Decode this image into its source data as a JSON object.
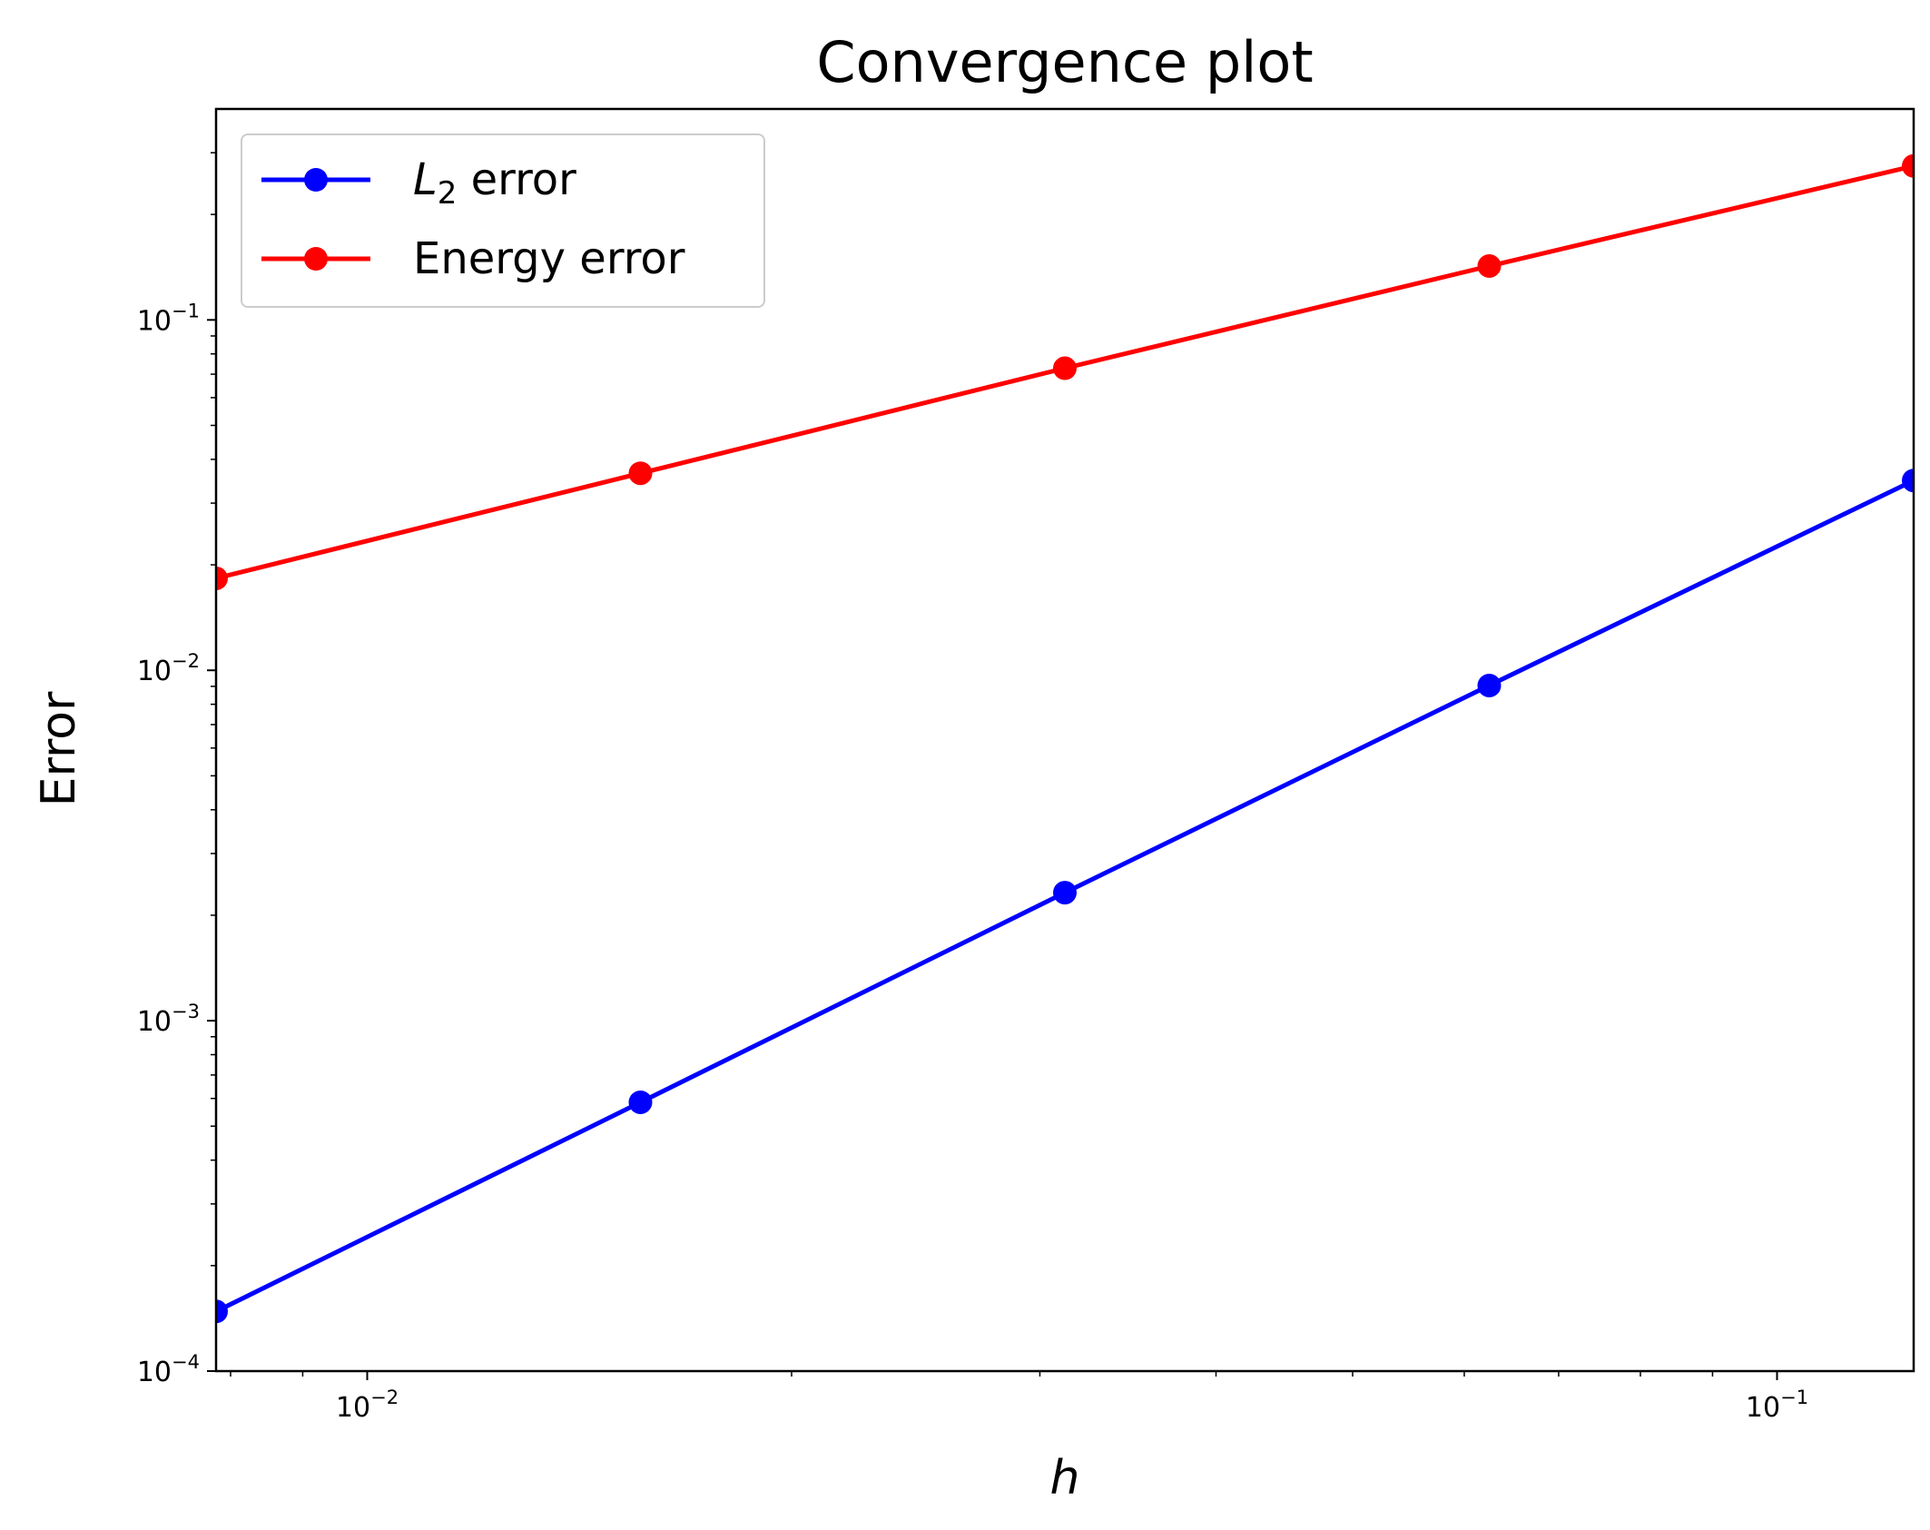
{
  "chart_data": {
    "type": "line",
    "title": "Convergence plot",
    "xlabel": "h",
    "ylabel": "Error",
    "xscale": "log",
    "yscale": "log",
    "xlim": [
      0.0078125,
      0.125
    ],
    "ylim": [
      0.0001,
      0.4
    ],
    "x_ticks": [
      {
        "value": 0.01,
        "base": "10",
        "exp": "−2"
      },
      {
        "value": 0.1,
        "base": "10",
        "exp": "−1"
      }
    ],
    "y_ticks": [
      {
        "value": 0.0001,
        "base": "10",
        "exp": "−4"
      },
      {
        "value": 0.001,
        "base": "10",
        "exp": "−3"
      },
      {
        "value": 0.01,
        "base": "10",
        "exp": "−2"
      },
      {
        "value": 0.1,
        "base": "10",
        "exp": "−1"
      }
    ],
    "grid": false,
    "legend_position": "upper-left",
    "x": [
      0.0078125,
      0.015625,
      0.03125,
      0.0625,
      0.125
    ],
    "series": [
      {
        "name": "L2 error",
        "legend_main": "L",
        "legend_sub": "2",
        "legend_rest": " error",
        "color": "#0000ff",
        "values": [
          0.000148,
          0.000585,
          0.00232,
          0.00905,
          0.0348
        ]
      },
      {
        "name": "Energy error",
        "legend_main": "Energy error",
        "legend_sub": "",
        "legend_rest": "",
        "color": "#ff0000",
        "values": [
          0.0183,
          0.0365,
          0.0728,
          0.1425,
          0.275
        ]
      }
    ]
  }
}
